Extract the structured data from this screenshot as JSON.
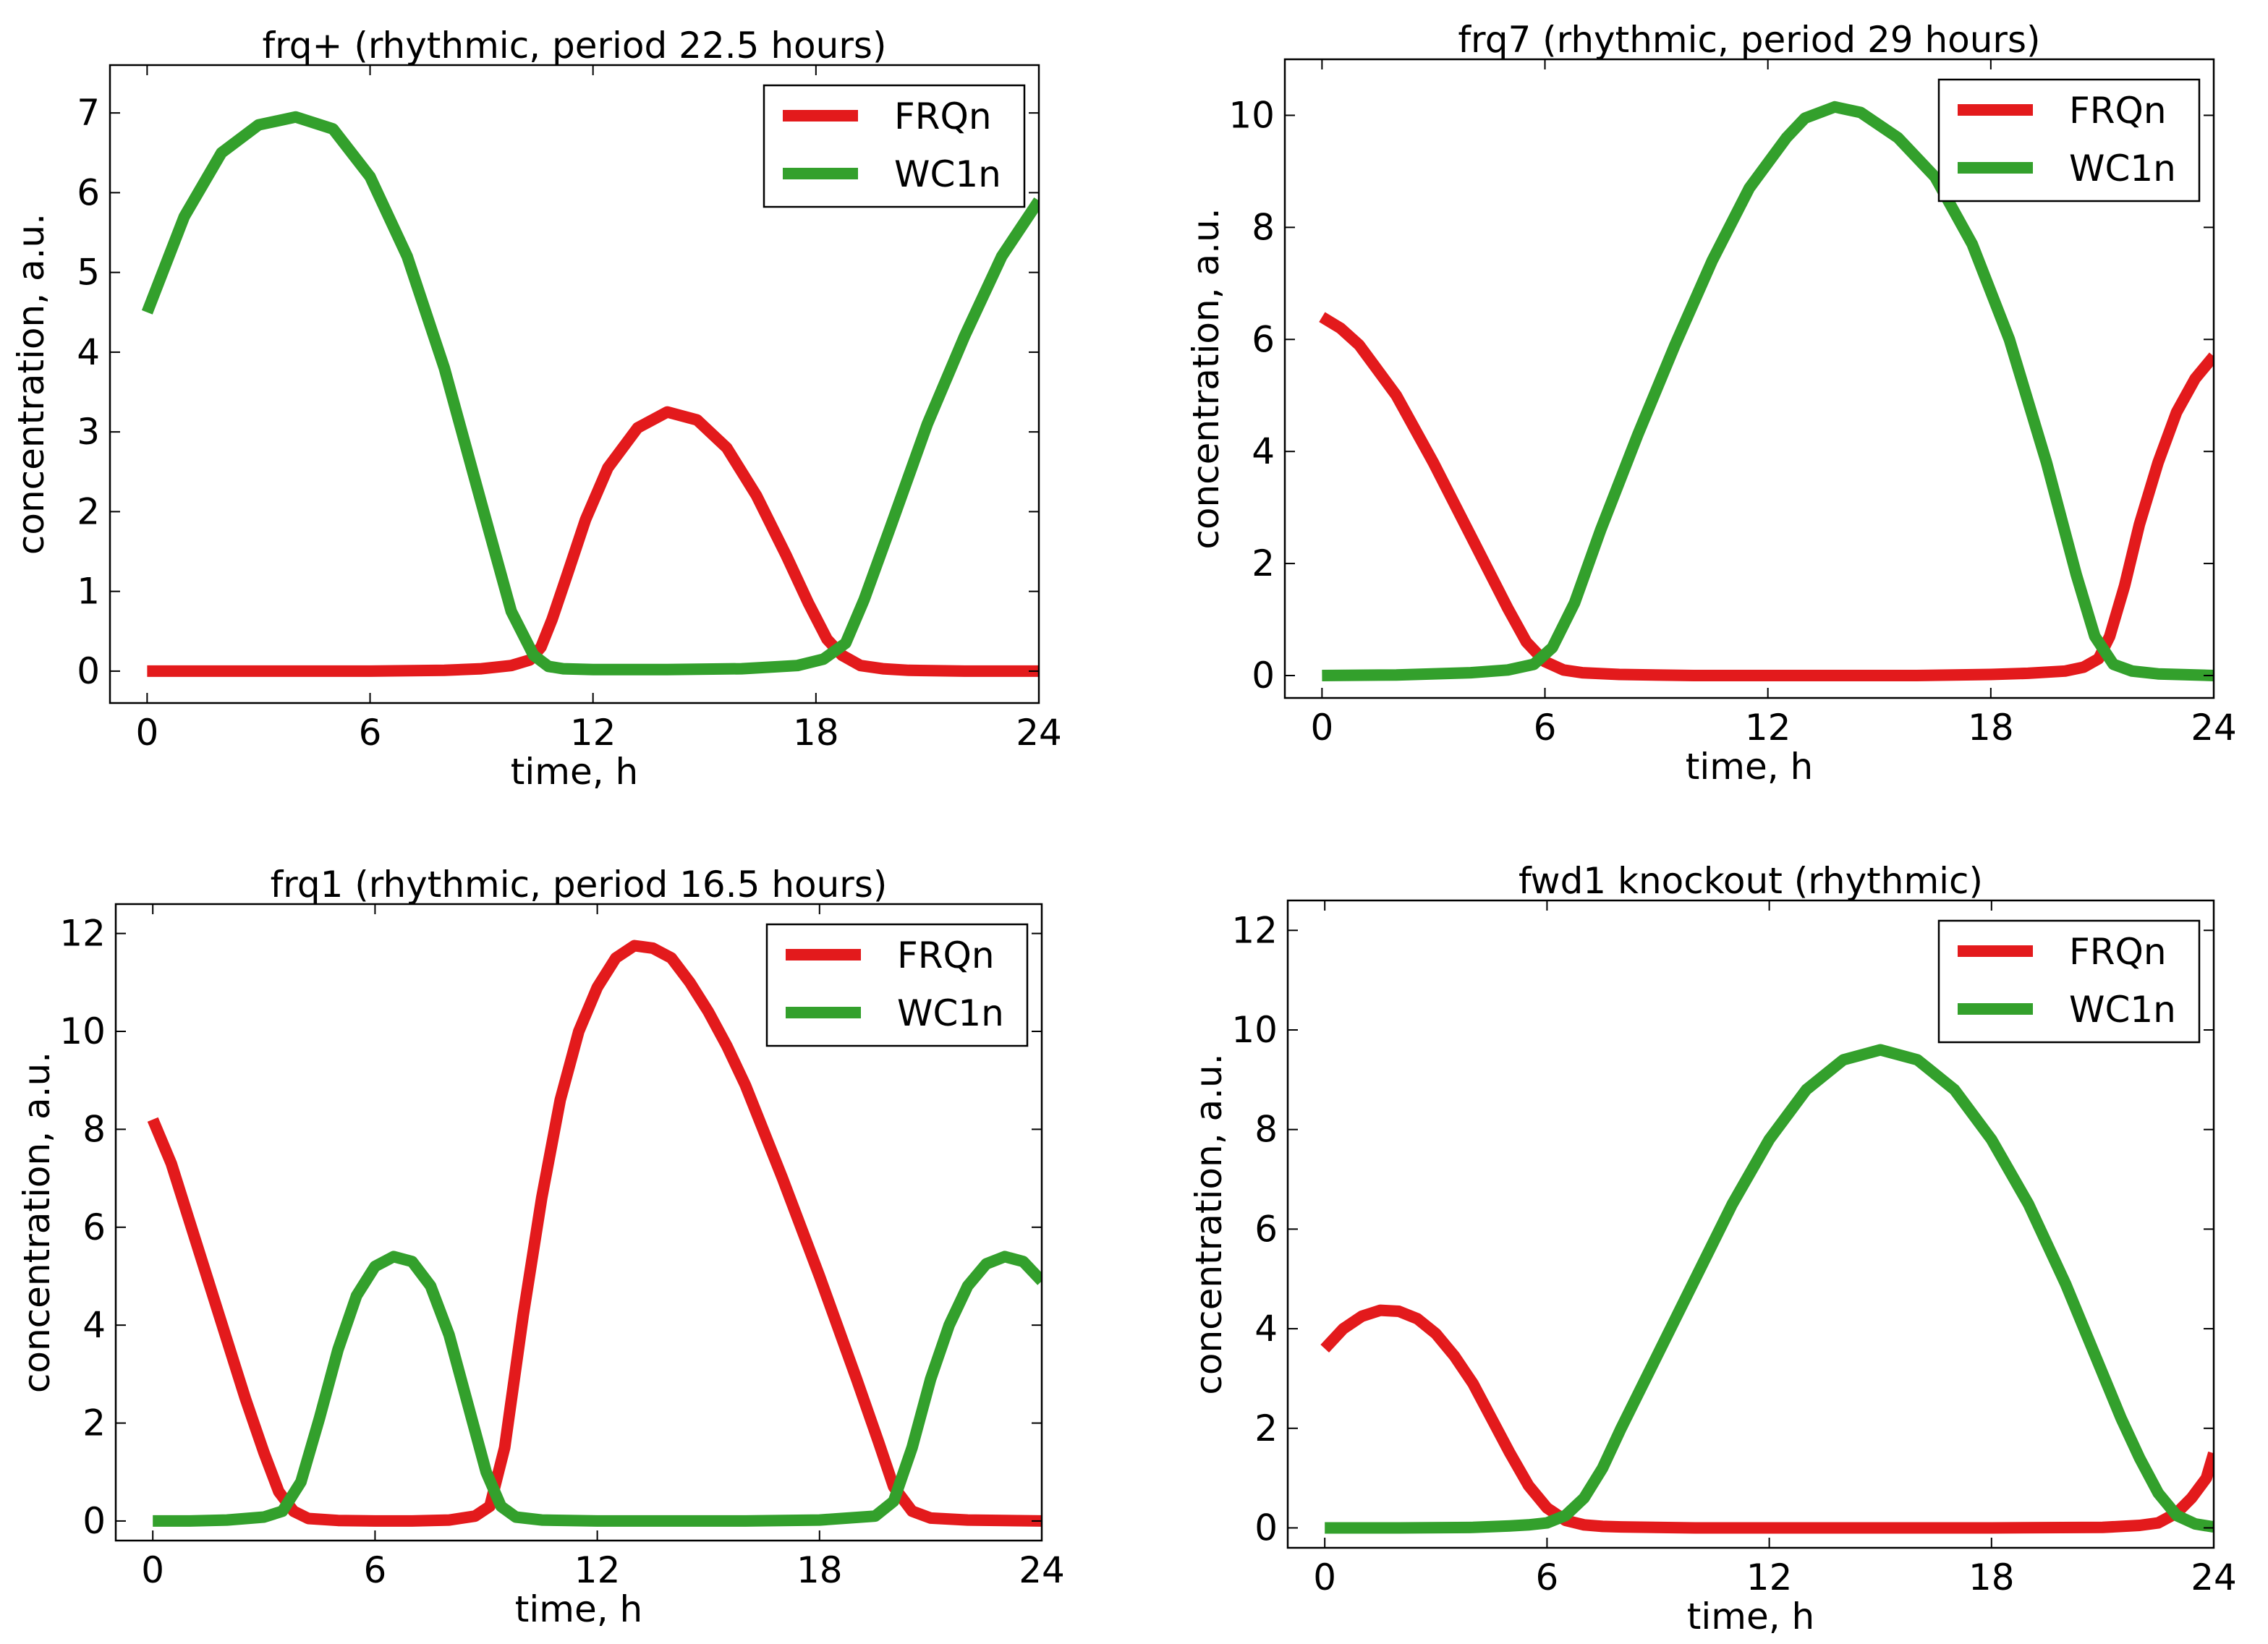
{
  "colors": {
    "frq": "#e31a1c",
    "wc": "#33a02c",
    "axis": "#000000",
    "background": "#ffffff"
  },
  "chart_data": [
    {
      "type": "line",
      "title": "frq+ (rhythmic, period 22.5 hours)",
      "xlabel": "time, h",
      "ylabel": "concentration, a.u.",
      "xlim": [
        -1,
        24
      ],
      "ylim": [
        -0.4,
        7.6
      ],
      "xticks": [
        0,
        6,
        12,
        18,
        24
      ],
      "xtick_labels": [
        "0",
        "6",
        "12",
        "18",
        "24"
      ],
      "yticks": [
        0,
        1,
        2,
        3,
        4,
        5,
        6,
        7
      ],
      "ytick_labels": [
        "0",
        "1",
        "2",
        "3",
        "4",
        "5",
        "6",
        "7"
      ],
      "legend": {
        "position": "top-right",
        "entries": [
          "FRQn",
          "WC1n"
        ]
      },
      "series": [
        {
          "name": "FRQn",
          "color": "#e31a1c",
          "x": [
            0,
            2,
            4,
            6,
            8,
            9,
            9.8,
            10.3,
            10.6,
            10.9,
            11.3,
            11.8,
            12.4,
            13.2,
            14,
            14.8,
            15.6,
            16.4,
            17.2,
            17.8,
            18.3,
            18.7,
            19.2,
            19.8,
            20.5,
            22,
            24
          ],
          "values": [
            0,
            0,
            0,
            0,
            0.01,
            0.03,
            0.07,
            0.14,
            0.3,
            0.65,
            1.2,
            1.9,
            2.55,
            3.05,
            3.25,
            3.15,
            2.8,
            2.2,
            1.45,
            0.85,
            0.4,
            0.2,
            0.07,
            0.03,
            0.01,
            0,
            0
          ]
        },
        {
          "name": "WC1n",
          "color": "#33a02c",
          "x": [
            0,
            1,
            2,
            3,
            4,
            5,
            6,
            7,
            8,
            9,
            9.8,
            10.4,
            10.8,
            11.2,
            12,
            14,
            16,
            17.5,
            18.2,
            18.8,
            19.3,
            20,
            21,
            22,
            23,
            24
          ],
          "values": [
            4.5,
            5.7,
            6.5,
            6.85,
            6.95,
            6.8,
            6.2,
            5.2,
            3.8,
            2.1,
            0.75,
            0.2,
            0.06,
            0.03,
            0.02,
            0.02,
            0.03,
            0.07,
            0.15,
            0.35,
            0.9,
            1.8,
            3.1,
            4.2,
            5.2,
            5.9
          ]
        }
      ]
    },
    {
      "type": "line",
      "title": "frq7 (rhythmic, period 29 hours)",
      "xlabel": "time, h",
      "ylabel": "concentration, a.u.",
      "xlim": [
        -1,
        24
      ],
      "ylim": [
        -0.4,
        11.0
      ],
      "xticks": [
        0,
        6,
        12,
        18,
        24
      ],
      "xtick_labels": [
        "0",
        "6",
        "12",
        "18",
        "24"
      ],
      "yticks": [
        0,
        2,
        4,
        6,
        8,
        10
      ],
      "ytick_labels": [
        "0",
        "2",
        "4",
        "6",
        "8",
        "10"
      ],
      "legend": {
        "position": "top-right",
        "entries": [
          "FRQn",
          "WC1n"
        ]
      },
      "series": [
        {
          "name": "FRQn",
          "color": "#e31a1c",
          "x": [
            0,
            0.5,
            1,
            2,
            3,
            4,
            5,
            5.5,
            6,
            6.5,
            7,
            8,
            10,
            12,
            14,
            16,
            18,
            19,
            20,
            20.5,
            20.9,
            21.2,
            21.6,
            22,
            22.5,
            23,
            23.5,
            24
          ],
          "values": [
            6.4,
            6.2,
            5.9,
            5.0,
            3.8,
            2.5,
            1.2,
            0.6,
            0.25,
            0.1,
            0.05,
            0.02,
            0,
            0,
            0,
            0,
            0.02,
            0.04,
            0.08,
            0.15,
            0.3,
            0.7,
            1.6,
            2.7,
            3.8,
            4.7,
            5.3,
            5.7
          ]
        },
        {
          "name": "WC1n",
          "color": "#33a02c",
          "x": [
            0,
            2,
            4,
            5,
            5.7,
            6.2,
            6.8,
            7.5,
            8.5,
            9.5,
            10.5,
            11.5,
            12.5,
            13,
            13.8,
            14.5,
            15.5,
            16.5,
            17.5,
            18.5,
            19.5,
            20.3,
            20.8,
            21.3,
            21.8,
            22.5,
            24
          ],
          "values": [
            0,
            0.01,
            0.05,
            0.1,
            0.2,
            0.5,
            1.3,
            2.6,
            4.3,
            5.9,
            7.4,
            8.7,
            9.6,
            9.95,
            10.15,
            10.05,
            9.6,
            8.9,
            7.7,
            6.0,
            3.8,
            1.8,
            0.7,
            0.2,
            0.08,
            0.03,
            0
          ]
        }
      ]
    },
    {
      "type": "line",
      "title": "frq1 (rhythmic, period 16.5 hours)",
      "xlabel": "time, h",
      "ylabel": "concentration, a.u.",
      "xlim": [
        -1,
        24
      ],
      "ylim": [
        -0.4,
        12.6
      ],
      "xticks": [
        0,
        6,
        12,
        18,
        24
      ],
      "xtick_labels": [
        "0",
        "6",
        "12",
        "18",
        "24"
      ],
      "yticks": [
        0,
        2,
        4,
        6,
        8,
        10,
        12
      ],
      "ytick_labels": [
        "0",
        "2",
        "4",
        "6",
        "8",
        "10",
        "12"
      ],
      "legend": {
        "position": "top-right",
        "entries": [
          "FRQn",
          "WC1n"
        ]
      },
      "series": [
        {
          "name": "FRQn",
          "color": "#e31a1c",
          "x": [
            0,
            0.5,
            1,
            1.5,
            2,
            2.5,
            3,
            3.4,
            3.8,
            4.2,
            5,
            6,
            7,
            8,
            8.7,
            9.1,
            9.5,
            10,
            10.5,
            11,
            11.5,
            12,
            12.5,
            13,
            13.5,
            14,
            14.5,
            15,
            15.5,
            16,
            17,
            18,
            19,
            19.6,
            20,
            20.5,
            21,
            22,
            24
          ],
          "values": [
            8.2,
            7.3,
            6.1,
            4.9,
            3.7,
            2.5,
            1.4,
            0.6,
            0.2,
            0.05,
            0.01,
            0,
            0,
            0.02,
            0.1,
            0.3,
            1.5,
            4.2,
            6.6,
            8.6,
            10.0,
            10.9,
            11.5,
            11.75,
            11.7,
            11.5,
            11.0,
            10.4,
            9.7,
            8.9,
            7.0,
            5.0,
            2.9,
            1.6,
            0.7,
            0.2,
            0.06,
            0.02,
            0
          ]
        },
        {
          "name": "WC1n",
          "color": "#33a02c",
          "x": [
            0,
            1,
            2,
            3,
            3.5,
            4,
            4.5,
            5,
            5.5,
            6,
            6.5,
            7,
            7.5,
            8,
            8.5,
            9,
            9.4,
            9.8,
            10.5,
            12,
            14,
            16,
            18,
            19.5,
            20,
            20.5,
            21,
            21.5,
            22,
            22.5,
            23,
            23.5,
            24
          ],
          "values": [
            0,
            0,
            0.02,
            0.08,
            0.2,
            0.8,
            2.1,
            3.5,
            4.6,
            5.2,
            5.4,
            5.3,
            4.8,
            3.8,
            2.4,
            1.0,
            0.3,
            0.08,
            0.02,
            0,
            0,
            0,
            0.02,
            0.1,
            0.4,
            1.5,
            2.9,
            4.0,
            4.8,
            5.25,
            5.4,
            5.3,
            4.9
          ]
        }
      ]
    },
    {
      "type": "line",
      "title": "fwd1 knockout (rhythmic)",
      "xlabel": "time, h",
      "ylabel": "concentration, a.u.",
      "xlim": [
        -1,
        24
      ],
      "ylim": [
        -0.4,
        12.6
      ],
      "xticks": [
        0,
        6,
        12,
        18,
        24
      ],
      "xtick_labels": [
        "0",
        "6",
        "12",
        "18",
        "24"
      ],
      "yticks": [
        0,
        2,
        4,
        6,
        8,
        10,
        12
      ],
      "ytick_labels": [
        "0",
        "2",
        "4",
        "6",
        "8",
        "10",
        "12"
      ],
      "legend": {
        "position": "top-right",
        "entries": [
          "FRQn",
          "WC1n"
        ]
      },
      "series": [
        {
          "name": "FRQn",
          "color": "#e31a1c",
          "x": [
            0,
            0.5,
            1,
            1.5,
            2,
            2.5,
            3,
            3.5,
            4,
            4.5,
            5,
            5.5,
            6,
            6.5,
            7,
            7.5,
            8,
            10,
            14,
            18,
            21,
            22,
            22.5,
            23,
            23.4,
            23.8,
            24
          ],
          "values": [
            3.6,
            4.0,
            4.25,
            4.37,
            4.35,
            4.2,
            3.9,
            3.45,
            2.9,
            2.2,
            1.5,
            0.85,
            0.4,
            0.15,
            0.06,
            0.03,
            0.02,
            0,
            0,
            0,
            0.01,
            0.05,
            0.1,
            0.3,
            0.6,
            1.0,
            1.5
          ]
        },
        {
          "name": "WC1n",
          "color": "#33a02c",
          "x": [
            0,
            2,
            4,
            5,
            5.5,
            6,
            6.5,
            7,
            7.5,
            8,
            9,
            10,
            11,
            12,
            13,
            14,
            15,
            16,
            17,
            18,
            19,
            20,
            21,
            21.5,
            22,
            22.5,
            23,
            23.5,
            24
          ],
          "values": [
            0,
            0,
            0.01,
            0.04,
            0.06,
            0.1,
            0.25,
            0.6,
            1.2,
            2.0,
            3.5,
            5.0,
            6.5,
            7.8,
            8.8,
            9.4,
            9.6,
            9.4,
            8.8,
            7.8,
            6.5,
            4.9,
            3.1,
            2.2,
            1.4,
            0.7,
            0.25,
            0.08,
            0.02
          ]
        }
      ]
    }
  ]
}
